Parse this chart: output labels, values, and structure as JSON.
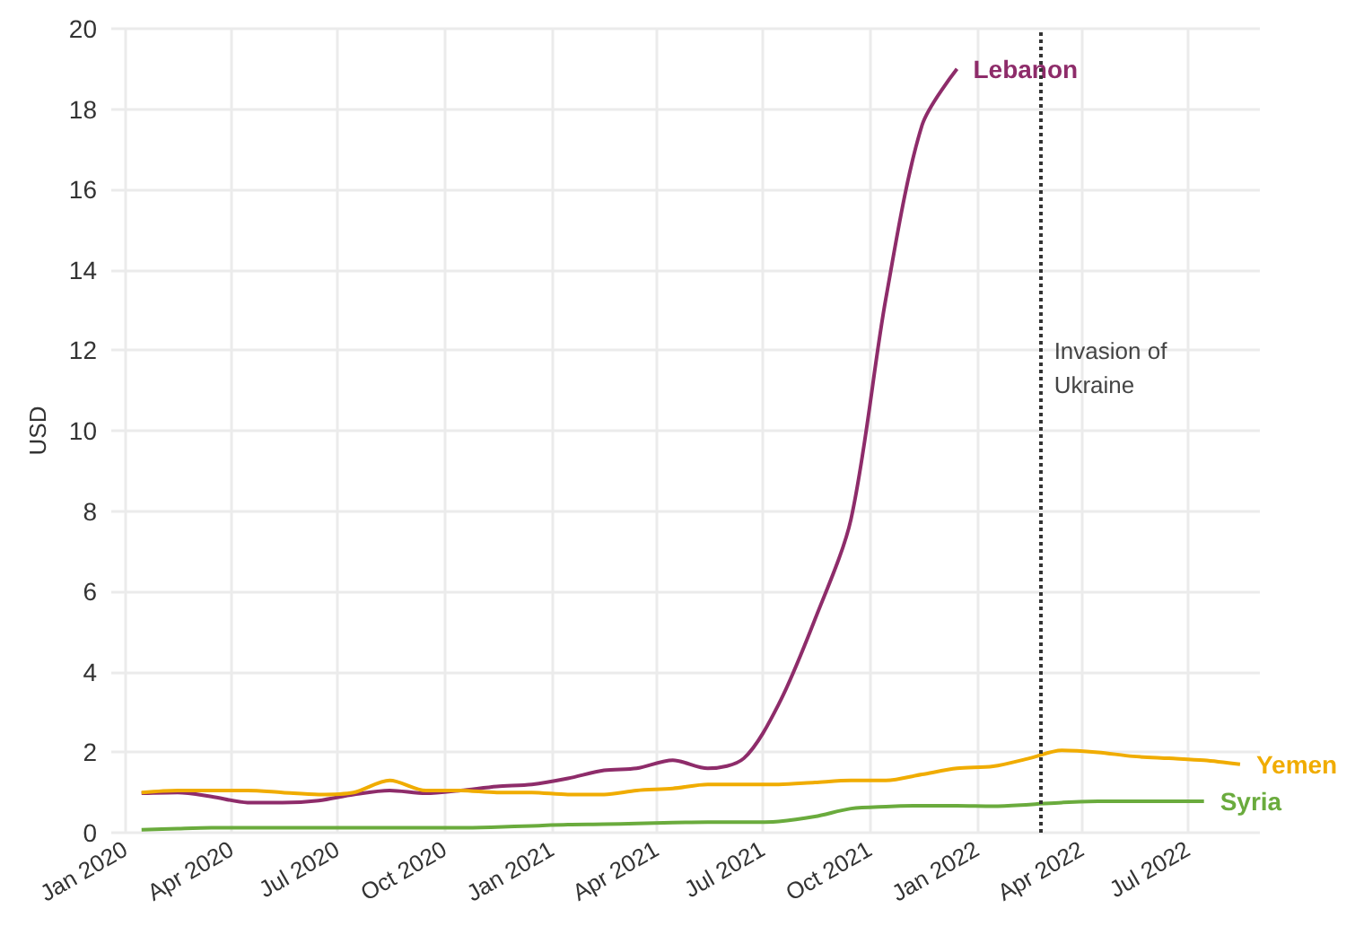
{
  "chart_data": {
    "type": "line",
    "ylabel": "USD",
    "x": [
      "2020-01-15",
      "2020-02-15",
      "2020-03-15",
      "2020-04-15",
      "2020-05-15",
      "2020-06-15",
      "2020-07-15",
      "2020-08-15",
      "2020-09-15",
      "2020-10-15",
      "2020-11-15",
      "2020-12-15",
      "2021-01-15",
      "2021-02-15",
      "2021-03-15",
      "2021-04-15",
      "2021-05-15",
      "2021-06-15",
      "2021-07-15",
      "2021-08-15",
      "2021-09-15",
      "2021-10-15",
      "2021-11-15",
      "2021-12-15",
      "2022-01-15",
      "2022-02-15",
      "2022-03-15",
      "2022-04-15",
      "2022-05-15",
      "2022-06-15",
      "2022-07-15",
      "2022-08-15"
    ],
    "series": [
      {
        "name": "Lebanon",
        "color": "#8e2c6a",
        "values": [
          0.98,
          1.0,
          0.9,
          0.75,
          0.75,
          0.8,
          0.95,
          1.05,
          0.98,
          1.05,
          1.15,
          1.2,
          1.35,
          1.55,
          1.6,
          1.8,
          1.6,
          1.85,
          3.2,
          5.3,
          7.8,
          13.3,
          17.6,
          19.0,
          null,
          null,
          null,
          null,
          null,
          null,
          null,
          null
        ]
      },
      {
        "name": "Yemen",
        "color": "#f0ac00",
        "values": [
          1.0,
          1.05,
          1.05,
          1.05,
          1.0,
          0.95,
          1.0,
          1.3,
          1.05,
          1.05,
          1.0,
          1.0,
          0.95,
          0.95,
          1.05,
          1.1,
          1.2,
          1.2,
          1.2,
          1.25,
          1.3,
          1.3,
          1.45,
          1.6,
          1.65,
          1.85,
          2.05,
          2.0,
          1.9,
          1.85,
          1.8,
          1.7
        ]
      },
      {
        "name": "Syria",
        "color": "#6aab3d",
        "values": [
          0.07,
          0.1,
          0.12,
          0.12,
          0.12,
          0.12,
          0.12,
          0.12,
          0.12,
          0.12,
          0.14,
          0.17,
          0.2,
          0.21,
          0.23,
          0.25,
          0.26,
          0.26,
          0.28,
          0.4,
          0.6,
          0.65,
          0.67,
          0.67,
          0.66,
          0.7,
          0.75,
          0.78,
          0.78,
          0.78,
          0.78,
          null
        ]
      }
    ],
    "xlim": [
      "2019-12-20",
      "2022-09-01"
    ],
    "xticks": [
      {
        "value": "2020-01-01",
        "label": "Jan 2020"
      },
      {
        "value": "2020-04-01",
        "label": "Apr 2020"
      },
      {
        "value": "2020-07-01",
        "label": "Jul 2020"
      },
      {
        "value": "2020-10-01",
        "label": "Oct 2020"
      },
      {
        "value": "2021-01-01",
        "label": "Jan 2021"
      },
      {
        "value": "2021-04-01",
        "label": "Apr 2021"
      },
      {
        "value": "2021-07-01",
        "label": "Jul 2021"
      },
      {
        "value": "2021-10-01",
        "label": "Oct 2021"
      },
      {
        "value": "2022-01-01",
        "label": "Jan 2022"
      },
      {
        "value": "2022-04-01",
        "label": "Apr 2022"
      },
      {
        "value": "2022-07-01",
        "label": "Jul 2022"
      }
    ],
    "ylim": [
      0,
      20
    ],
    "yticks": [
      0,
      2,
      4,
      6,
      8,
      10,
      12,
      14,
      16,
      18,
      20
    ],
    "ref_lines": [
      {
        "axis": "x",
        "value": "2022-02-24",
        "label": "Invasion of Ukraine",
        "color": "#333333",
        "line_style": "dotted"
      }
    ],
    "grid": true,
    "legend": false,
    "marker": "none",
    "line_style": "solid"
  }
}
